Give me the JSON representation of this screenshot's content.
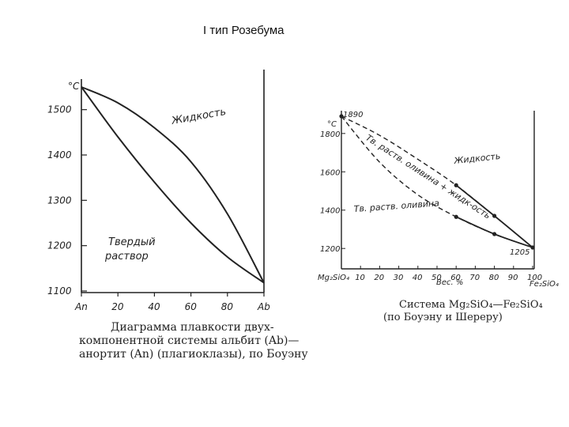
{
  "slide": {
    "title": "I тип Розебума"
  },
  "left_diagram": {
    "y_unit": "°C",
    "y_ticks": [
      "1500",
      "1400",
      "1300",
      "1200",
      "1100"
    ],
    "x_ticks": [
      "An",
      "20",
      "40",
      "60",
      "80",
      "Ab"
    ],
    "liquid_label": "Жидкость",
    "solid_label_line1": "Твердый",
    "solid_label_line2": "раствор",
    "caption": [
      "Диаграмма плавкости двух-",
      "компонентной системы альбит (Ab)—",
      "анортит (An) (плагиоклазы), по Боуэну"
    ]
  },
  "right_diagram": {
    "y_unit": "°C",
    "top_temp": "1890",
    "bottom_temp": "1205",
    "y_ticks": [
      "1800",
      "1600",
      "1400",
      "1200"
    ],
    "x_ticks": [
      "Mg₂SiO₄",
      "10",
      "20",
      "30",
      "40",
      "50",
      "60",
      "70",
      "80",
      "90",
      "100",
      "Fe₂SiO₄"
    ],
    "x_axis_label": "Вес. %",
    "liquid_label": "Жидкость",
    "two_phase_label": "Тв. раств. оливина + жидк-ость",
    "solid_label": "Тв. раств. оливина",
    "caption": [
      "Система  Mg₂SiO₄—Fe₂SiO₄",
      "(по Боуэну и Шереру)"
    ]
  },
  "chart_data": [
    {
      "type": "line",
      "title": "",
      "xlabel": "",
      "ylabel": "°C",
      "xlim": [
        0,
        100
      ],
      "ylim": [
        1100,
        1550
      ],
      "x_endpoints": [
        "An",
        "Ab"
      ],
      "series": [
        {
          "name": "Жидкость",
          "x": [
            0,
            20,
            40,
            60,
            80,
            100
          ],
          "y": [
            1550,
            1515,
            1460,
            1385,
            1270,
            1118
          ]
        },
        {
          "name": "Твердый раствор",
          "x": [
            0,
            20,
            40,
            60,
            80,
            100
          ],
          "y": [
            1550,
            1440,
            1340,
            1250,
            1175,
            1118
          ]
        }
      ]
    },
    {
      "type": "line",
      "title": "",
      "xlabel": "Вес. %",
      "ylabel": "°C",
      "xlim": [
        0,
        100
      ],
      "ylim": [
        1200,
        1900
      ],
      "series": [
        {
          "name": "Жидкость",
          "x": [
            0,
            20,
            40,
            60,
            80,
            100
          ],
          "y": [
            1890,
            1790,
            1665,
            1530,
            1370,
            1205
          ]
        },
        {
          "name": "Тв. раств. оливина",
          "x": [
            0,
            20,
            40,
            60,
            80,
            100
          ],
          "y": [
            1890,
            1650,
            1480,
            1365,
            1275,
            1205
          ]
        }
      ]
    }
  ]
}
